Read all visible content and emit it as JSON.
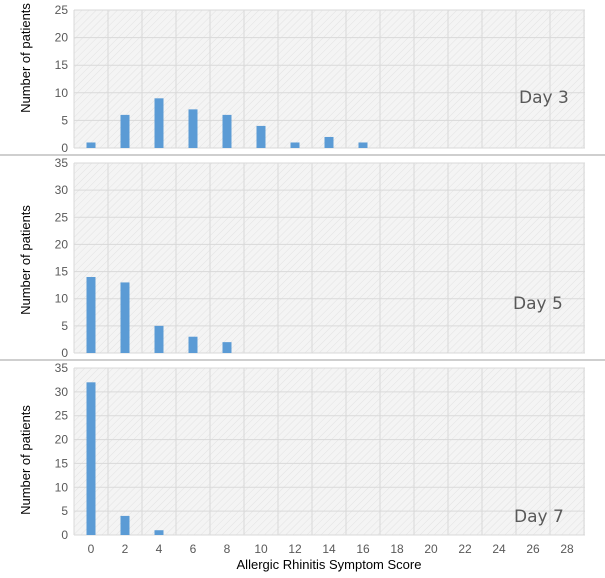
{
  "colors": {
    "bar": "#5b9bd5",
    "grid": "#d9d9d9",
    "tick_text": "#595959",
    "separator": "#bfbfbf",
    "plot_bg": "#f7f7f7"
  },
  "xlabel": "Allergic Rhinitis Symptom Score",
  "chart_data": [
    {
      "type": "bar",
      "panel_label": "Day 3",
      "ylabel": "Number of patients",
      "x": [
        0,
        2,
        4,
        6,
        8,
        10,
        12,
        14,
        16,
        18,
        20,
        22,
        24,
        26,
        28
      ],
      "values": [
        1,
        6,
        9,
        7,
        6,
        4,
        1,
        2,
        1,
        0,
        0,
        0,
        0,
        0,
        0
      ],
      "ylim": [
        0,
        25
      ],
      "yticks": [
        0,
        5,
        10,
        15,
        20,
        25
      ],
      "grid": true
    },
    {
      "type": "bar",
      "panel_label": "Day 5",
      "ylabel": "Number of patients",
      "x": [
        0,
        2,
        4,
        6,
        8,
        10,
        12,
        14,
        16,
        18,
        20,
        22,
        24,
        26,
        28
      ],
      "values": [
        14,
        13,
        5,
        3,
        2,
        0,
        0,
        0,
        0,
        0,
        0,
        0,
        0,
        0,
        0
      ],
      "ylim": [
        0,
        35
      ],
      "yticks": [
        0,
        5,
        10,
        15,
        20,
        25,
        30,
        35
      ],
      "grid": true
    },
    {
      "type": "bar",
      "panel_label": "Day 7",
      "ylabel": "Number of patients",
      "x": [
        0,
        2,
        4,
        6,
        8,
        10,
        12,
        14,
        16,
        18,
        20,
        22,
        24,
        26,
        28
      ],
      "values": [
        32,
        4,
        1,
        0,
        0,
        0,
        0,
        0,
        0,
        0,
        0,
        0,
        0,
        0,
        0
      ],
      "ylim": [
        0,
        35
      ],
      "yticks": [
        0,
        5,
        10,
        15,
        20,
        25,
        30,
        35
      ],
      "grid": true,
      "xticks": [
        0,
        2,
        4,
        6,
        8,
        10,
        12,
        14,
        16,
        18,
        20,
        22,
        24,
        26,
        28
      ]
    }
  ]
}
